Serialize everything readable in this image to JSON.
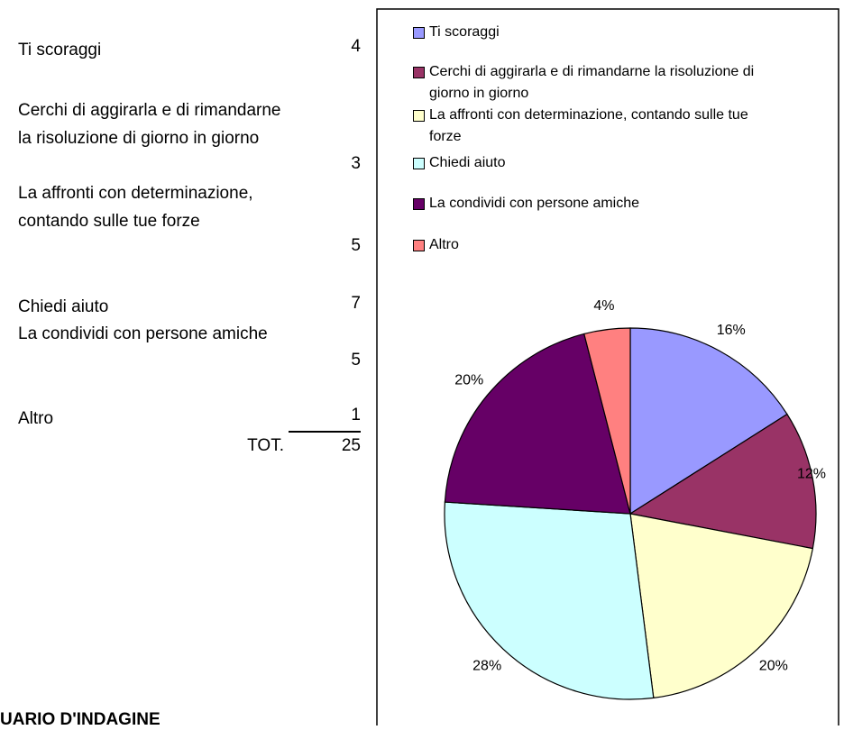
{
  "table": {
    "rows": [
      [
        "Ti scoraggi",
        4
      ],
      [
        "Cerchi di aggirarla e di rimandarne la risoluzione di giorno in giorno",
        3
      ],
      [
        "La affronti con determinazione, contando sulle tue forze",
        5
      ],
      [
        "Chiedi aiuto",
        7
      ],
      [
        "La condividi con persone amiche",
        5
      ],
      [
        "Altro",
        1
      ]
    ],
    "total_label": "TOT.",
    "total": 25
  },
  "footer": "UARIO D'INDAGINE",
  "chart_data": {
    "type": "pie",
    "categories": [
      "Ti scoraggi",
      "Cerchi di aggirarla e di rimandarne la risoluzione di giorno in giorno",
      "La affronti con determinazione, contando sulle tue forze",
      "Chiedi aiuto",
      "La condividi con persone amiche",
      "Altro"
    ],
    "values": [
      16,
      12,
      20,
      28,
      20,
      4
    ],
    "value_labels": [
      "16%",
      "12%",
      "20%",
      "28%",
      "20%",
      "4%"
    ],
    "colors": [
      "#9999ff",
      "#993366",
      "#ffffcc",
      "#ccffff",
      "#660066",
      "#ff8080"
    ],
    "legend": "top"
  }
}
